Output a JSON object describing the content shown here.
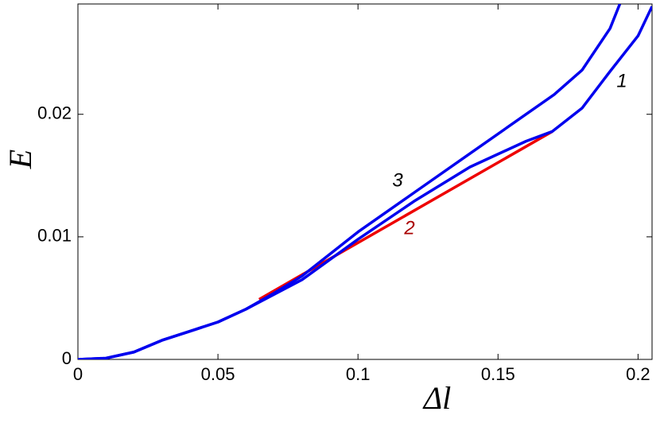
{
  "chart_data": {
    "type": "line",
    "x_label": "Δl",
    "y_label": "E",
    "xlim": [
      0,
      0.205
    ],
    "ylim": [
      0,
      0.029
    ],
    "xticks": [
      0,
      0.05,
      0.1,
      0.15,
      0.2
    ],
    "yticks": [
      0,
      0.01,
      0.02
    ],
    "series": [
      {
        "color": "#0000ee",
        "x": [
          0,
          0.01,
          0.02,
          0.03,
          0.04,
          0.05,
          0.06,
          0.07,
          0.08,
          0.09,
          0.1,
          0.12,
          0.14,
          0.16,
          0.17,
          0.18,
          0.19,
          0.1935
        ],
        "values": [
          0,
          0.0001,
          0.0006,
          0.00156,
          0.0023,
          0.00305,
          0.0041,
          0.0054,
          0.0068,
          0.0086,
          0.0104,
          0.0136,
          0.0168,
          0.02,
          0.0216,
          0.0236,
          0.027,
          0.029
        ]
      },
      {
        "color": "#0000ee",
        "x": [
          0,
          0.01,
          0.02,
          0.03,
          0.04,
          0.05,
          0.06,
          0.065,
          0.08,
          0.1,
          0.12,
          0.14,
          0.16,
          0.1694,
          0.18,
          0.19,
          0.2,
          0.205
        ],
        "values": [
          0,
          0.0001,
          0.0006,
          0.00156,
          0.0023,
          0.00305,
          0.0041,
          0.0047,
          0.0065,
          0.0098,
          0.0129,
          0.0157,
          0.0178,
          0.0186,
          0.0205,
          0.0235,
          0.0264,
          0.0288
        ]
      },
      {
        "color": "#ee0000",
        "x": [
          0.0647,
          0.1694
        ],
        "values": [
          0.0049,
          0.0186
        ]
      }
    ],
    "annotations": [
      {
        "text": "1",
        "color": "#000000"
      },
      {
        "text": "2",
        "color": "#aa0000"
      },
      {
        "text": "3",
        "color": "#000000"
      }
    ]
  }
}
